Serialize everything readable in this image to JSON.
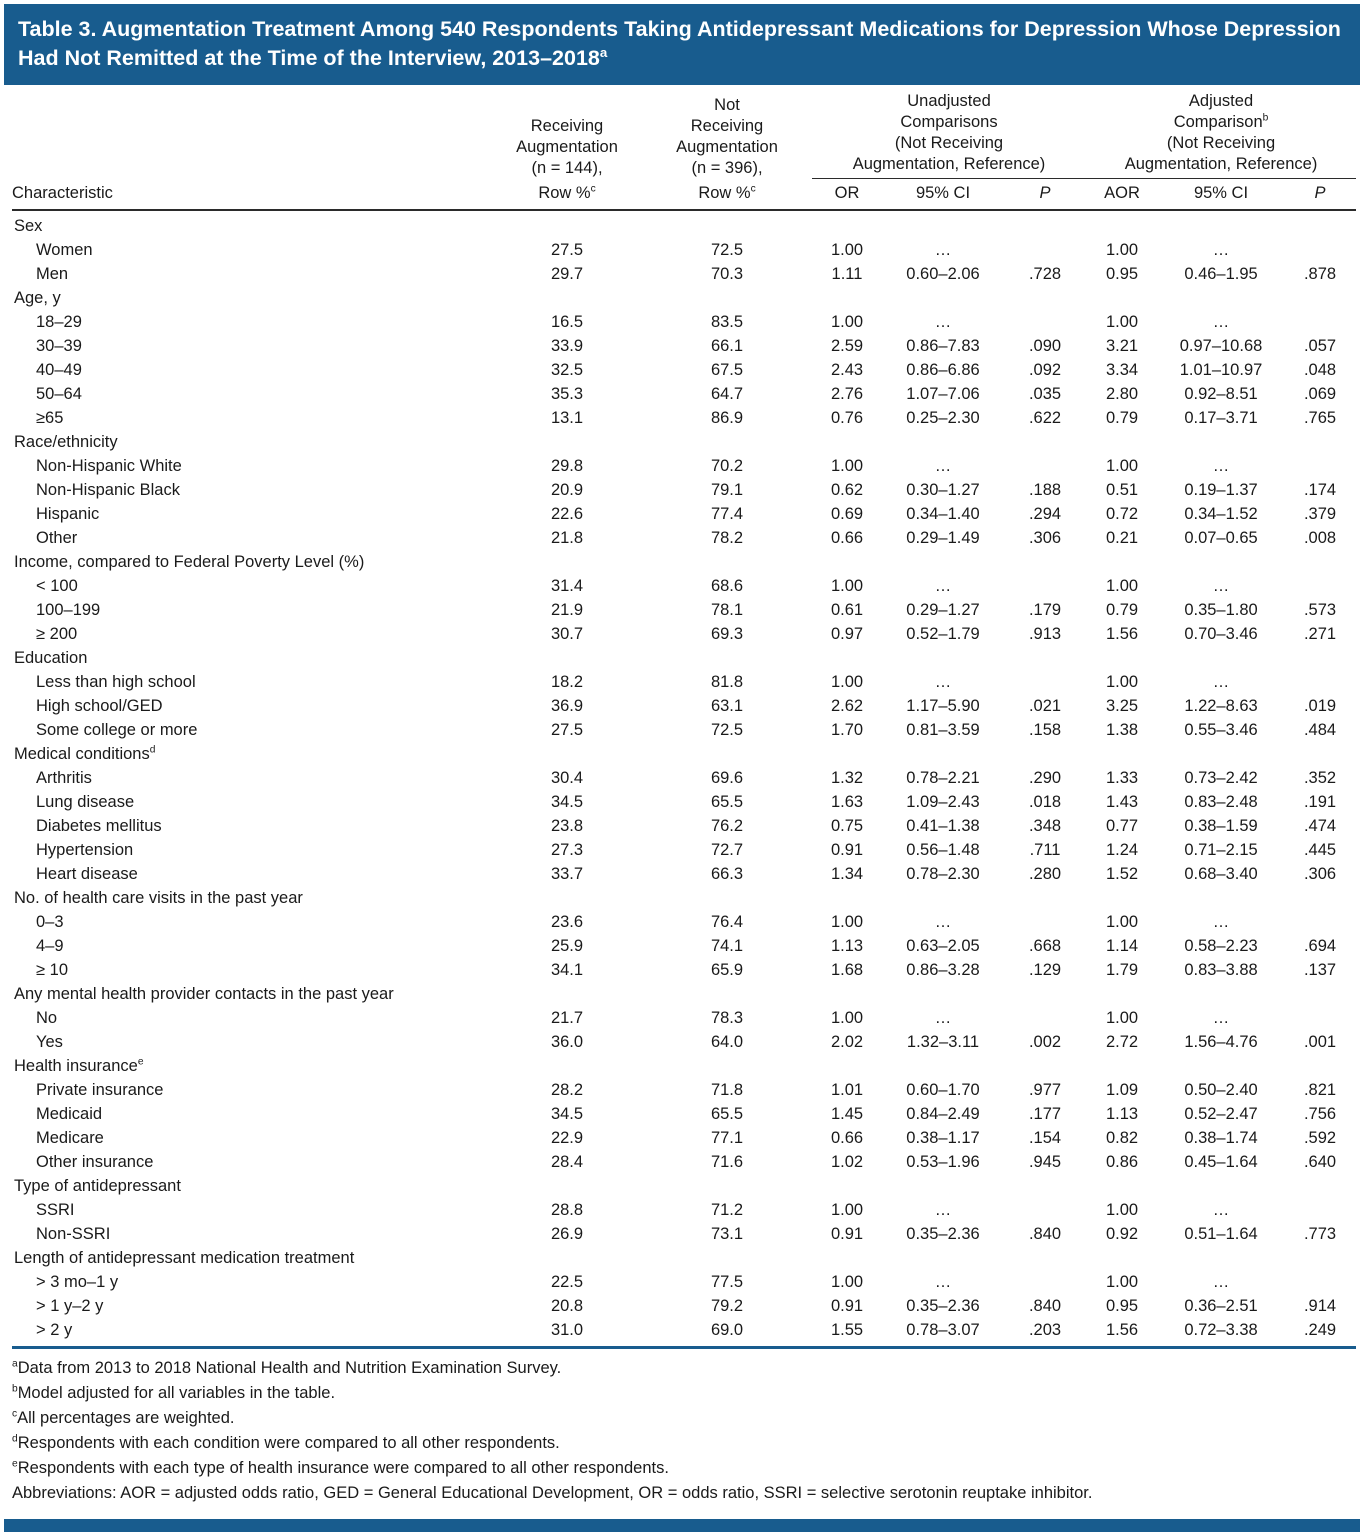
{
  "title": {
    "text": "Table 3. Augmentation Treatment Among 540 Respondents Taking Antidepressant Medications for Depression Whose Depression Had Not Remitted at the Time of the Interview, 2013–2018",
    "superscript": "a"
  },
  "columns": {
    "characteristic": "Characteristic",
    "receiving": {
      "lines": [
        "Receiving",
        "Augmentation",
        "(n = 144),"
      ],
      "sub": "Row %",
      "sub_sup": "c"
    },
    "not_receiving": {
      "lines": [
        "Not",
        "Receiving",
        "Augmentation",
        "(n = 396),"
      ],
      "sub": "Row %",
      "sub_sup": "c"
    },
    "unadjusted": {
      "lines": [
        "Unadjusted",
        "Comparisons",
        "(Not Receiving",
        "Augmentation, Reference)"
      ],
      "sub_cols": [
        "OR",
        "95% CI",
        "P"
      ]
    },
    "adjusted": {
      "lines": [
        "Adjusted",
        "Comparison",
        "(Not Receiving",
        "Augmentation, Reference)"
      ],
      "sup": "b",
      "sup_line": 1,
      "sub_cols": [
        "AOR",
        "95% CI",
        "P"
      ]
    }
  },
  "sections": [
    {
      "label": "Sex",
      "sup": "",
      "rows": [
        {
          "label": "Women",
          "cells": [
            "27.5",
            "72.5",
            "1.00",
            "…",
            "",
            "1.00",
            "…",
            ""
          ]
        },
        {
          "label": "Men",
          "cells": [
            "29.7",
            "70.3",
            "1.11",
            "0.60–2.06",
            ".728",
            "0.95",
            "0.46–1.95",
            ".878"
          ]
        }
      ]
    },
    {
      "label": "Age, y",
      "sup": "",
      "rows": [
        {
          "label": "18–29",
          "cells": [
            "16.5",
            "83.5",
            "1.00",
            "…",
            "",
            "1.00",
            "…",
            ""
          ]
        },
        {
          "label": "30–39",
          "cells": [
            "33.9",
            "66.1",
            "2.59",
            "0.86–7.83",
            ".090",
            "3.21",
            "0.97–10.68",
            ".057"
          ]
        },
        {
          "label": "40–49",
          "cells": [
            "32.5",
            "67.5",
            "2.43",
            "0.86–6.86",
            ".092",
            "3.34",
            "1.01–10.97",
            ".048"
          ]
        },
        {
          "label": "50–64",
          "cells": [
            "35.3",
            "64.7",
            "2.76",
            "1.07–7.06",
            ".035",
            "2.80",
            "0.92–8.51",
            ".069"
          ]
        },
        {
          "label": "≥65",
          "cells": [
            "13.1",
            "86.9",
            "0.76",
            "0.25–2.30",
            ".622",
            "0.79",
            "0.17–3.71",
            ".765"
          ]
        }
      ]
    },
    {
      "label": "Race/ethnicity",
      "sup": "",
      "rows": [
        {
          "label": "Non-Hispanic White",
          "cells": [
            "29.8",
            "70.2",
            "1.00",
            "…",
            "",
            "1.00",
            "…",
            ""
          ]
        },
        {
          "label": "Non-Hispanic Black",
          "cells": [
            "20.9",
            "79.1",
            "0.62",
            "0.30–1.27",
            ".188",
            "0.51",
            "0.19–1.37",
            ".174"
          ]
        },
        {
          "label": "Hispanic",
          "cells": [
            "22.6",
            "77.4",
            "0.69",
            "0.34–1.40",
            ".294",
            "0.72",
            "0.34–1.52",
            ".379"
          ]
        },
        {
          "label": "Other",
          "cells": [
            "21.8",
            "78.2",
            "0.66",
            "0.29–1.49",
            ".306",
            "0.21",
            "0.07–0.65",
            ".008"
          ]
        }
      ]
    },
    {
      "label": "Income, compared to Federal Poverty Level (%)",
      "sup": "",
      "rows": [
        {
          "label": "< 100",
          "cells": [
            "31.4",
            "68.6",
            "1.00",
            "…",
            "",
            "1.00",
            "…",
            ""
          ]
        },
        {
          "label": "100–199",
          "cells": [
            "21.9",
            "78.1",
            "0.61",
            "0.29–1.27",
            ".179",
            "0.79",
            "0.35–1.80",
            ".573"
          ]
        },
        {
          "label": "≥ 200",
          "cells": [
            "30.7",
            "69.3",
            "0.97",
            "0.52–1.79",
            ".913",
            "1.56",
            "0.70–3.46",
            ".271"
          ]
        }
      ]
    },
    {
      "label": "Education",
      "sup": "",
      "rows": [
        {
          "label": "Less than high school",
          "cells": [
            "18.2",
            "81.8",
            "1.00",
            "…",
            "",
            "1.00",
            "…",
            ""
          ]
        },
        {
          "label": "High school/GED",
          "cells": [
            "36.9",
            "63.1",
            "2.62",
            "1.17–5.90",
            ".021",
            "3.25",
            "1.22–8.63",
            ".019"
          ]
        },
        {
          "label": "Some college or more",
          "cells": [
            "27.5",
            "72.5",
            "1.70",
            "0.81–3.59",
            ".158",
            "1.38",
            "0.55–3.46",
            ".484"
          ]
        }
      ]
    },
    {
      "label": "Medical conditions",
      "sup": "d",
      "rows": [
        {
          "label": "Arthritis",
          "cells": [
            "30.4",
            "69.6",
            "1.32",
            "0.78–2.21",
            ".290",
            "1.33",
            "0.73–2.42",
            ".352"
          ]
        },
        {
          "label": "Lung disease",
          "cells": [
            "34.5",
            "65.5",
            "1.63",
            "1.09–2.43",
            ".018",
            "1.43",
            "0.83–2.48",
            ".191"
          ]
        },
        {
          "label": "Diabetes mellitus",
          "cells": [
            "23.8",
            "76.2",
            "0.75",
            "0.41–1.38",
            ".348",
            "0.77",
            "0.38–1.59",
            ".474"
          ]
        },
        {
          "label": "Hypertension",
          "cells": [
            "27.3",
            "72.7",
            "0.91",
            "0.56–1.48",
            ".711",
            "1.24",
            "0.71–2.15",
            ".445"
          ]
        },
        {
          "label": "Heart disease",
          "cells": [
            "33.7",
            "66.3",
            "1.34",
            "0.78–2.30",
            ".280",
            "1.52",
            "0.68–3.40",
            ".306"
          ]
        }
      ]
    },
    {
      "label": "No. of health care visits in the past year",
      "sup": "",
      "rows": [
        {
          "label": "0–3",
          "cells": [
            "23.6",
            "76.4",
            "1.00",
            "…",
            "",
            "1.00",
            "…",
            ""
          ]
        },
        {
          "label": "4–9",
          "cells": [
            "25.9",
            "74.1",
            "1.13",
            "0.63–2.05",
            ".668",
            "1.14",
            "0.58–2.23",
            ".694"
          ]
        },
        {
          "label": "≥ 10",
          "cells": [
            "34.1",
            "65.9",
            "1.68",
            "0.86–3.28",
            ".129",
            "1.79",
            "0.83–3.88",
            ".137"
          ]
        }
      ]
    },
    {
      "label": "Any mental health provider contacts in the past year",
      "sup": "",
      "rows": [
        {
          "label": "No",
          "cells": [
            "21.7",
            "78.3",
            "1.00",
            "…",
            "",
            "1.00",
            "…",
            ""
          ]
        },
        {
          "label": "Yes",
          "cells": [
            "36.0",
            "64.0",
            "2.02",
            "1.32–3.11",
            ".002",
            "2.72",
            "1.56–4.76",
            ".001"
          ]
        }
      ]
    },
    {
      "label": "Health insurance",
      "sup": "e",
      "rows": [
        {
          "label": "Private insurance",
          "cells": [
            "28.2",
            "71.8",
            "1.01",
            "0.60–1.70",
            ".977",
            "1.09",
            "0.50–2.40",
            ".821"
          ]
        },
        {
          "label": "Medicaid",
          "cells": [
            "34.5",
            "65.5",
            "1.45",
            "0.84–2.49",
            ".177",
            "1.13",
            "0.52–2.47",
            ".756"
          ]
        },
        {
          "label": "Medicare",
          "cells": [
            "22.9",
            "77.1",
            "0.66",
            "0.38–1.17",
            ".154",
            "0.82",
            "0.38–1.74",
            ".592"
          ]
        },
        {
          "label": "Other insurance",
          "cells": [
            "28.4",
            "71.6",
            "1.02",
            "0.53–1.96",
            ".945",
            "0.86",
            "0.45–1.64",
            ".640"
          ]
        }
      ]
    },
    {
      "label": "Type of antidepressant",
      "sup": "",
      "rows": [
        {
          "label": "SSRI",
          "cells": [
            "28.8",
            "71.2",
            "1.00",
            "…",
            "",
            "1.00",
            "…",
            ""
          ]
        },
        {
          "label": "Non-SSRI",
          "cells": [
            "26.9",
            "73.1",
            "0.91",
            "0.35–2.36",
            ".840",
            "0.92",
            "0.51–1.64",
            ".773"
          ]
        }
      ]
    },
    {
      "label": "Length of antidepressant medication treatment",
      "sup": "",
      "rows": [
        {
          "label": "> 3 mo–1 y",
          "cells": [
            "22.5",
            "77.5",
            "1.00",
            "…",
            "",
            "1.00",
            "…",
            ""
          ]
        },
        {
          "label": "> 1 y–2 y",
          "cells": [
            "20.8",
            "79.2",
            "0.91",
            "0.35–2.36",
            ".840",
            "0.95",
            "0.36–2.51",
            ".914"
          ]
        },
        {
          "label": "> 2 y",
          "cells": [
            "31.0",
            "69.0",
            "1.55",
            "0.78–3.07",
            ".203",
            "1.56",
            "0.72–3.38",
            ".249"
          ]
        }
      ]
    }
  ],
  "footnotes": [
    {
      "sup": "a",
      "text": "Data from 2013 to 2018 National Health and Nutrition Examination Survey."
    },
    {
      "sup": "b",
      "text": "Model adjusted for all variables in the table."
    },
    {
      "sup": "c",
      "text": "All percentages are weighted."
    },
    {
      "sup": "d",
      "text": "Respondents with each condition were compared to all other respondents."
    },
    {
      "sup": "e",
      "text": "Respondents with each type of health insurance were compared to all other respondents."
    },
    {
      "sup": "",
      "text": "Abbreviations: AOR = adjusted odds ratio, GED = General Educational Development, OR = odds ratio, SSRI = selective serotonin reuptake inhibitor."
    }
  ],
  "colors": {
    "header_blue": "#185C8E",
    "rule_dark": "#2B2B2B",
    "text": "#1A1A1A"
  }
}
